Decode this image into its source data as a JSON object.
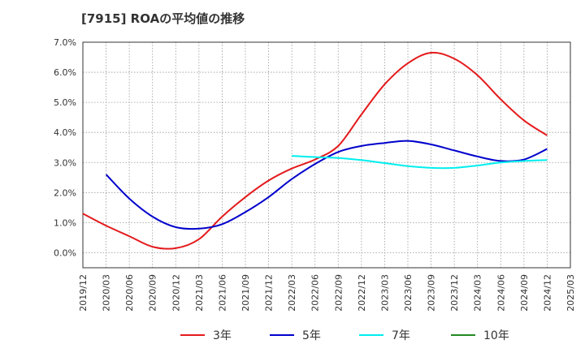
{
  "chart_data": {
    "type": "line",
    "title": "[7915]  ROAの平均値の推移",
    "xlabel": "",
    "ylabel": "",
    "x": [
      "2019/12",
      "2020/03",
      "2020/06",
      "2020/09",
      "2020/12",
      "2021/03",
      "2021/06",
      "2021/09",
      "2021/12",
      "2022/03",
      "2022/06",
      "2022/09",
      "2022/12",
      "2023/03",
      "2023/06",
      "2023/09",
      "2023/12",
      "2024/03",
      "2024/06",
      "2024/09",
      "2024/12",
      "2025/03"
    ],
    "ylim": [
      -0.5,
      7.0
    ],
    "yticks": [
      0.0,
      1.0,
      2.0,
      3.0,
      4.0,
      5.0,
      6.0,
      7.0
    ],
    "ytick_labels": [
      "0.0%",
      "1.0%",
      "2.0%",
      "3.0%",
      "4.0%",
      "5.0%",
      "6.0%",
      "7.0%"
    ],
    "grid": true,
    "legend_position": "bottom",
    "series": [
      {
        "name": "3年",
        "color": "#e41a1c",
        "values": [
          1.3,
          0.9,
          0.55,
          0.2,
          0.15,
          0.45,
          1.2,
          1.85,
          2.4,
          2.8,
          3.1,
          3.55,
          4.6,
          5.6,
          6.3,
          6.65,
          6.45,
          5.9,
          5.1,
          4.4,
          3.9,
          null
        ]
      },
      {
        "name": "5年",
        "color": "#0000cc",
        "values": [
          null,
          2.6,
          1.8,
          1.2,
          0.85,
          0.8,
          0.95,
          1.35,
          1.85,
          2.45,
          2.95,
          3.35,
          3.55,
          3.65,
          3.72,
          3.6,
          3.4,
          3.2,
          3.05,
          3.1,
          3.45,
          null
        ]
      },
      {
        "name": "7年",
        "color": "#00eeee",
        "values": [
          null,
          null,
          null,
          null,
          null,
          null,
          null,
          null,
          null,
          3.22,
          3.18,
          3.15,
          3.08,
          2.98,
          2.88,
          2.82,
          2.82,
          2.9,
          3.0,
          3.05,
          3.08,
          null
        ]
      },
      {
        "name": "10年",
        "color": "#228b22",
        "values": [
          null,
          null,
          null,
          null,
          null,
          null,
          null,
          null,
          null,
          null,
          null,
          null,
          null,
          null,
          null,
          null,
          null,
          null,
          null,
          null,
          null,
          null
        ]
      }
    ]
  }
}
